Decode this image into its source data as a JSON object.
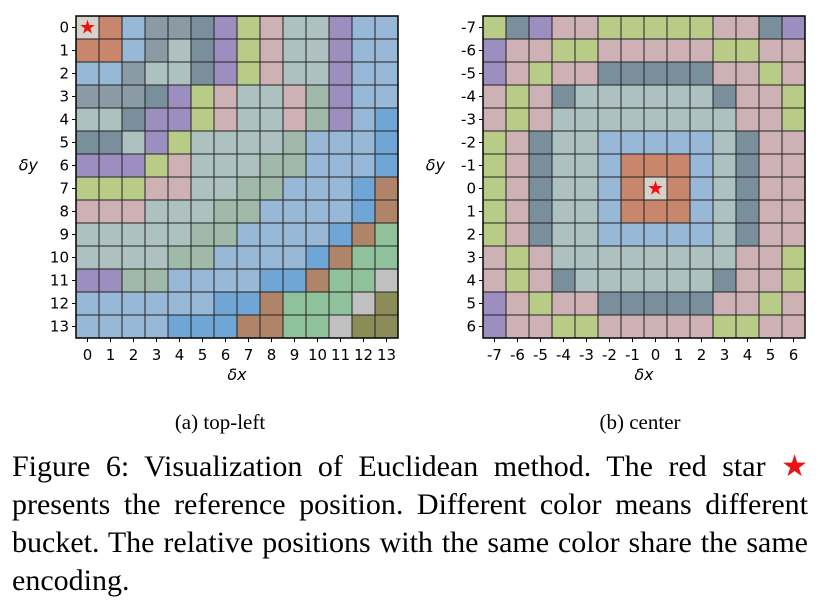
{
  "chart_data": [
    {
      "type": "heatmap",
      "xlabel": "δx",
      "ylabel": "δy",
      "x_ticks": [
        "0",
        "1",
        "2",
        "3",
        "4",
        "5",
        "6",
        "7",
        "8",
        "9",
        "10",
        "11",
        "12",
        "13"
      ],
      "y_ticks": [
        "0",
        "1",
        "2",
        "3",
        "4",
        "5",
        "6",
        "7",
        "8",
        "9",
        "10",
        "11",
        "12",
        "13"
      ],
      "reference_cell": [
        0,
        0
      ],
      "cells": [
        [
          0,
          1,
          2,
          3,
          3,
          4,
          5,
          6,
          7,
          8,
          8,
          5,
          2,
          2
        ],
        [
          1,
          1,
          2,
          3,
          8,
          4,
          5,
          6,
          7,
          8,
          8,
          5,
          2,
          2
        ],
        [
          2,
          2,
          3,
          8,
          8,
          4,
          5,
          6,
          7,
          8,
          8,
          5,
          2,
          2
        ],
        [
          3,
          3,
          3,
          4,
          5,
          6,
          7,
          8,
          8,
          7,
          9,
          5,
          2,
          2
        ],
        [
          8,
          8,
          4,
          5,
          5,
          6,
          7,
          8,
          8,
          7,
          9,
          5,
          2,
          10
        ],
        [
          4,
          4,
          8,
          5,
          6,
          8,
          8,
          8,
          8,
          9,
          2,
          2,
          2,
          10
        ],
        [
          5,
          5,
          5,
          6,
          7,
          8,
          8,
          8,
          9,
          9,
          2,
          2,
          2,
          10
        ],
        [
          6,
          6,
          6,
          7,
          7,
          8,
          8,
          9,
          9,
          2,
          2,
          2,
          10,
          11
        ],
        [
          7,
          7,
          7,
          8,
          8,
          8,
          9,
          9,
          2,
          2,
          2,
          2,
          10,
          11
        ],
        [
          8,
          8,
          8,
          8,
          8,
          9,
          9,
          2,
          2,
          2,
          2,
          10,
          11,
          12
        ],
        [
          8,
          8,
          8,
          8,
          9,
          9,
          2,
          2,
          2,
          2,
          10,
          11,
          12,
          12
        ],
        [
          5,
          5,
          9,
          9,
          2,
          2,
          2,
          2,
          10,
          10,
          11,
          12,
          12,
          13
        ],
        [
          2,
          2,
          2,
          2,
          2,
          2,
          10,
          10,
          11,
          12,
          12,
          12,
          13,
          14
        ],
        [
          2,
          2,
          2,
          2,
          10,
          10,
          10,
          11,
          11,
          12,
          12,
          13,
          14,
          14
        ]
      ]
    },
    {
      "type": "heatmap",
      "xlabel": "δx",
      "ylabel": "δy",
      "x_ticks": [
        "-7",
        "-6",
        "-5",
        "-4",
        "-3",
        "-2",
        "-1",
        "0",
        "1",
        "2",
        "3",
        "4",
        "5",
        "6"
      ],
      "y_ticks": [
        "-7",
        "-6",
        "-5",
        "-4",
        "-3",
        "-2",
        "-1",
        "0",
        "1",
        "2",
        "3",
        "4",
        "5",
        "6"
      ],
      "reference_cell": [
        7,
        7
      ],
      "cells": [
        [
          6,
          4,
          5,
          7,
          7,
          6,
          6,
          6,
          6,
          6,
          7,
          7,
          4,
          5
        ],
        [
          5,
          7,
          7,
          6,
          6,
          7,
          7,
          7,
          7,
          7,
          6,
          6,
          7,
          7
        ],
        [
          5,
          7,
          6,
          7,
          7,
          4,
          4,
          4,
          4,
          4,
          7,
          7,
          6,
          7
        ],
        [
          7,
          6,
          7,
          4,
          8,
          8,
          8,
          8,
          8,
          8,
          4,
          7,
          7,
          6
        ],
        [
          7,
          6,
          7,
          8,
          8,
          8,
          8,
          8,
          8,
          8,
          8,
          7,
          7,
          6
        ],
        [
          6,
          7,
          4,
          8,
          8,
          2,
          2,
          2,
          2,
          2,
          8,
          4,
          7,
          7
        ],
        [
          6,
          7,
          4,
          8,
          8,
          2,
          1,
          1,
          1,
          2,
          8,
          4,
          7,
          7
        ],
        [
          6,
          7,
          4,
          8,
          8,
          2,
          1,
          0,
          1,
          2,
          8,
          4,
          7,
          7
        ],
        [
          6,
          7,
          4,
          8,
          8,
          2,
          1,
          1,
          1,
          2,
          8,
          4,
          7,
          7
        ],
        [
          6,
          7,
          4,
          8,
          8,
          2,
          2,
          2,
          2,
          2,
          8,
          4,
          7,
          7
        ],
        [
          7,
          6,
          7,
          8,
          8,
          8,
          8,
          8,
          8,
          8,
          8,
          7,
          7,
          6
        ],
        [
          7,
          6,
          7,
          4,
          8,
          8,
          8,
          8,
          8,
          8,
          4,
          7,
          7,
          6
        ],
        [
          5,
          7,
          6,
          7,
          7,
          4,
          4,
          4,
          4,
          4,
          7,
          7,
          6,
          7
        ],
        [
          5,
          7,
          7,
          6,
          6,
          7,
          7,
          7,
          7,
          7,
          6,
          6,
          7,
          7
        ]
      ]
    }
  ],
  "palette": [
    "#d7d3cb",
    "#c8866c",
    "#98b8d8",
    "#8a9ba5",
    "#7a8f9c",
    "#9c8fbf",
    "#b8cc88",
    "#cdb1b4",
    "#adc2c0",
    "#a0b9a8",
    "#6fa6d6",
    "#b08468",
    "#8fc29a",
    "#c0c0c0",
    "#8c8c58"
  ],
  "reference_marker": "★",
  "subcaptions": {
    "a": "(a) top-left",
    "b": "(b) center"
  },
  "caption": {
    "prefix": "Figure 6: Visualization of Euclidean method. The red star",
    "star": "★",
    "suffix": "presents the reference position. Different color means different bucket. The relative positions with the same color share the same encoding."
  }
}
